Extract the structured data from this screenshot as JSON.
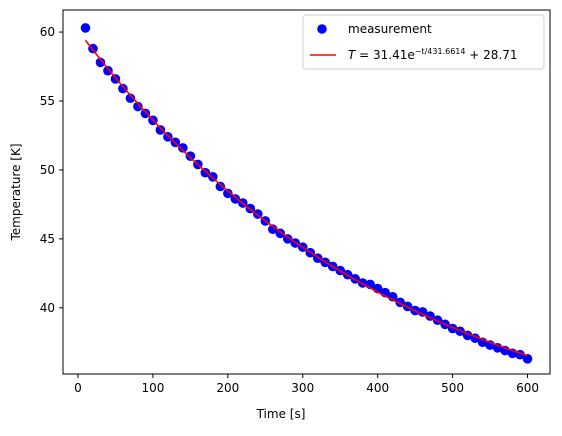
{
  "chart_data": {
    "type": "scatter",
    "title": "",
    "xlabel": "Time [s]",
    "ylabel": "Temperature [K]",
    "xlim": [
      -20,
      630
    ],
    "ylim": [
      35.2,
      61.6
    ],
    "xticks": [
      0,
      100,
      200,
      300,
      400,
      500,
      600
    ],
    "yticks": [
      40,
      45,
      50,
      55,
      60
    ],
    "grid": false,
    "legend_position": "top-right",
    "series": [
      {
        "name": "measurement",
        "kind": "scatter",
        "color": "#0000ff",
        "x": [
          10,
          20,
          30,
          40,
          50,
          60,
          70,
          80,
          90,
          100,
          110,
          120,
          130,
          140,
          150,
          160,
          170,
          180,
          190,
          200,
          210,
          220,
          230,
          240,
          250,
          260,
          270,
          280,
          290,
          300,
          310,
          320,
          330,
          340,
          350,
          360,
          370,
          380,
          390,
          400,
          410,
          420,
          430,
          440,
          450,
          460,
          470,
          480,
          490,
          500,
          510,
          520,
          530,
          540,
          550,
          560,
          570,
          580,
          590,
          600
        ],
        "y": [
          60.3,
          58.8,
          57.8,
          57.2,
          56.6,
          55.9,
          55.2,
          54.6,
          54.1,
          53.6,
          52.9,
          52.4,
          52.0,
          51.6,
          51.0,
          50.4,
          49.8,
          49.5,
          48.8,
          48.3,
          47.9,
          47.6,
          47.2,
          46.8,
          46.3,
          45.7,
          45.4,
          45.0,
          44.7,
          44.4,
          44.0,
          43.6,
          43.3,
          43.0,
          42.7,
          42.4,
          42.1,
          41.8,
          41.7,
          41.4,
          41.1,
          40.8,
          40.4,
          40.1,
          39.8,
          39.7,
          39.4,
          39.1,
          38.8,
          38.5,
          38.3,
          38.0,
          37.8,
          37.5,
          37.3,
          37.1,
          36.9,
          36.7,
          36.6,
          36.3
        ]
      },
      {
        "name": "T = 31.41e^{-t/431.6614} + 28.71",
        "kind": "line",
        "color": "#ff0000",
        "amplitude": 31.41,
        "tau": 431.6614,
        "offset": 28.71,
        "x_range": [
          10,
          600
        ]
      }
    ],
    "legend": {
      "scatter_label": "measurement",
      "fit_prefix": "T",
      "fit_equals": " = 31.41e",
      "fit_exponent": "−t/431.6614",
      "fit_suffix": " + 28.71"
    }
  }
}
